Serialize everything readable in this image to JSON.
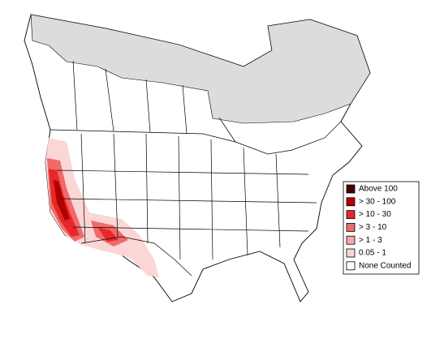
{
  "legend": {
    "items": [
      {
        "label": "Above 100",
        "color": "#4a0000"
      },
      {
        "label": "> 30 - 100",
        "color": "#b00000"
      },
      {
        "label": "> 10 - 30",
        "color": "#e62828"
      },
      {
        "label": "> 3 - 10",
        "color": "#f06a6a"
      },
      {
        "label": "> 1 - 3",
        "color": "#f6a8a8"
      },
      {
        "label": "0.05 - 1",
        "color": "#fbd6d6"
      },
      {
        "label": "None Counted",
        "color": "#ffffff"
      }
    ]
  }
}
